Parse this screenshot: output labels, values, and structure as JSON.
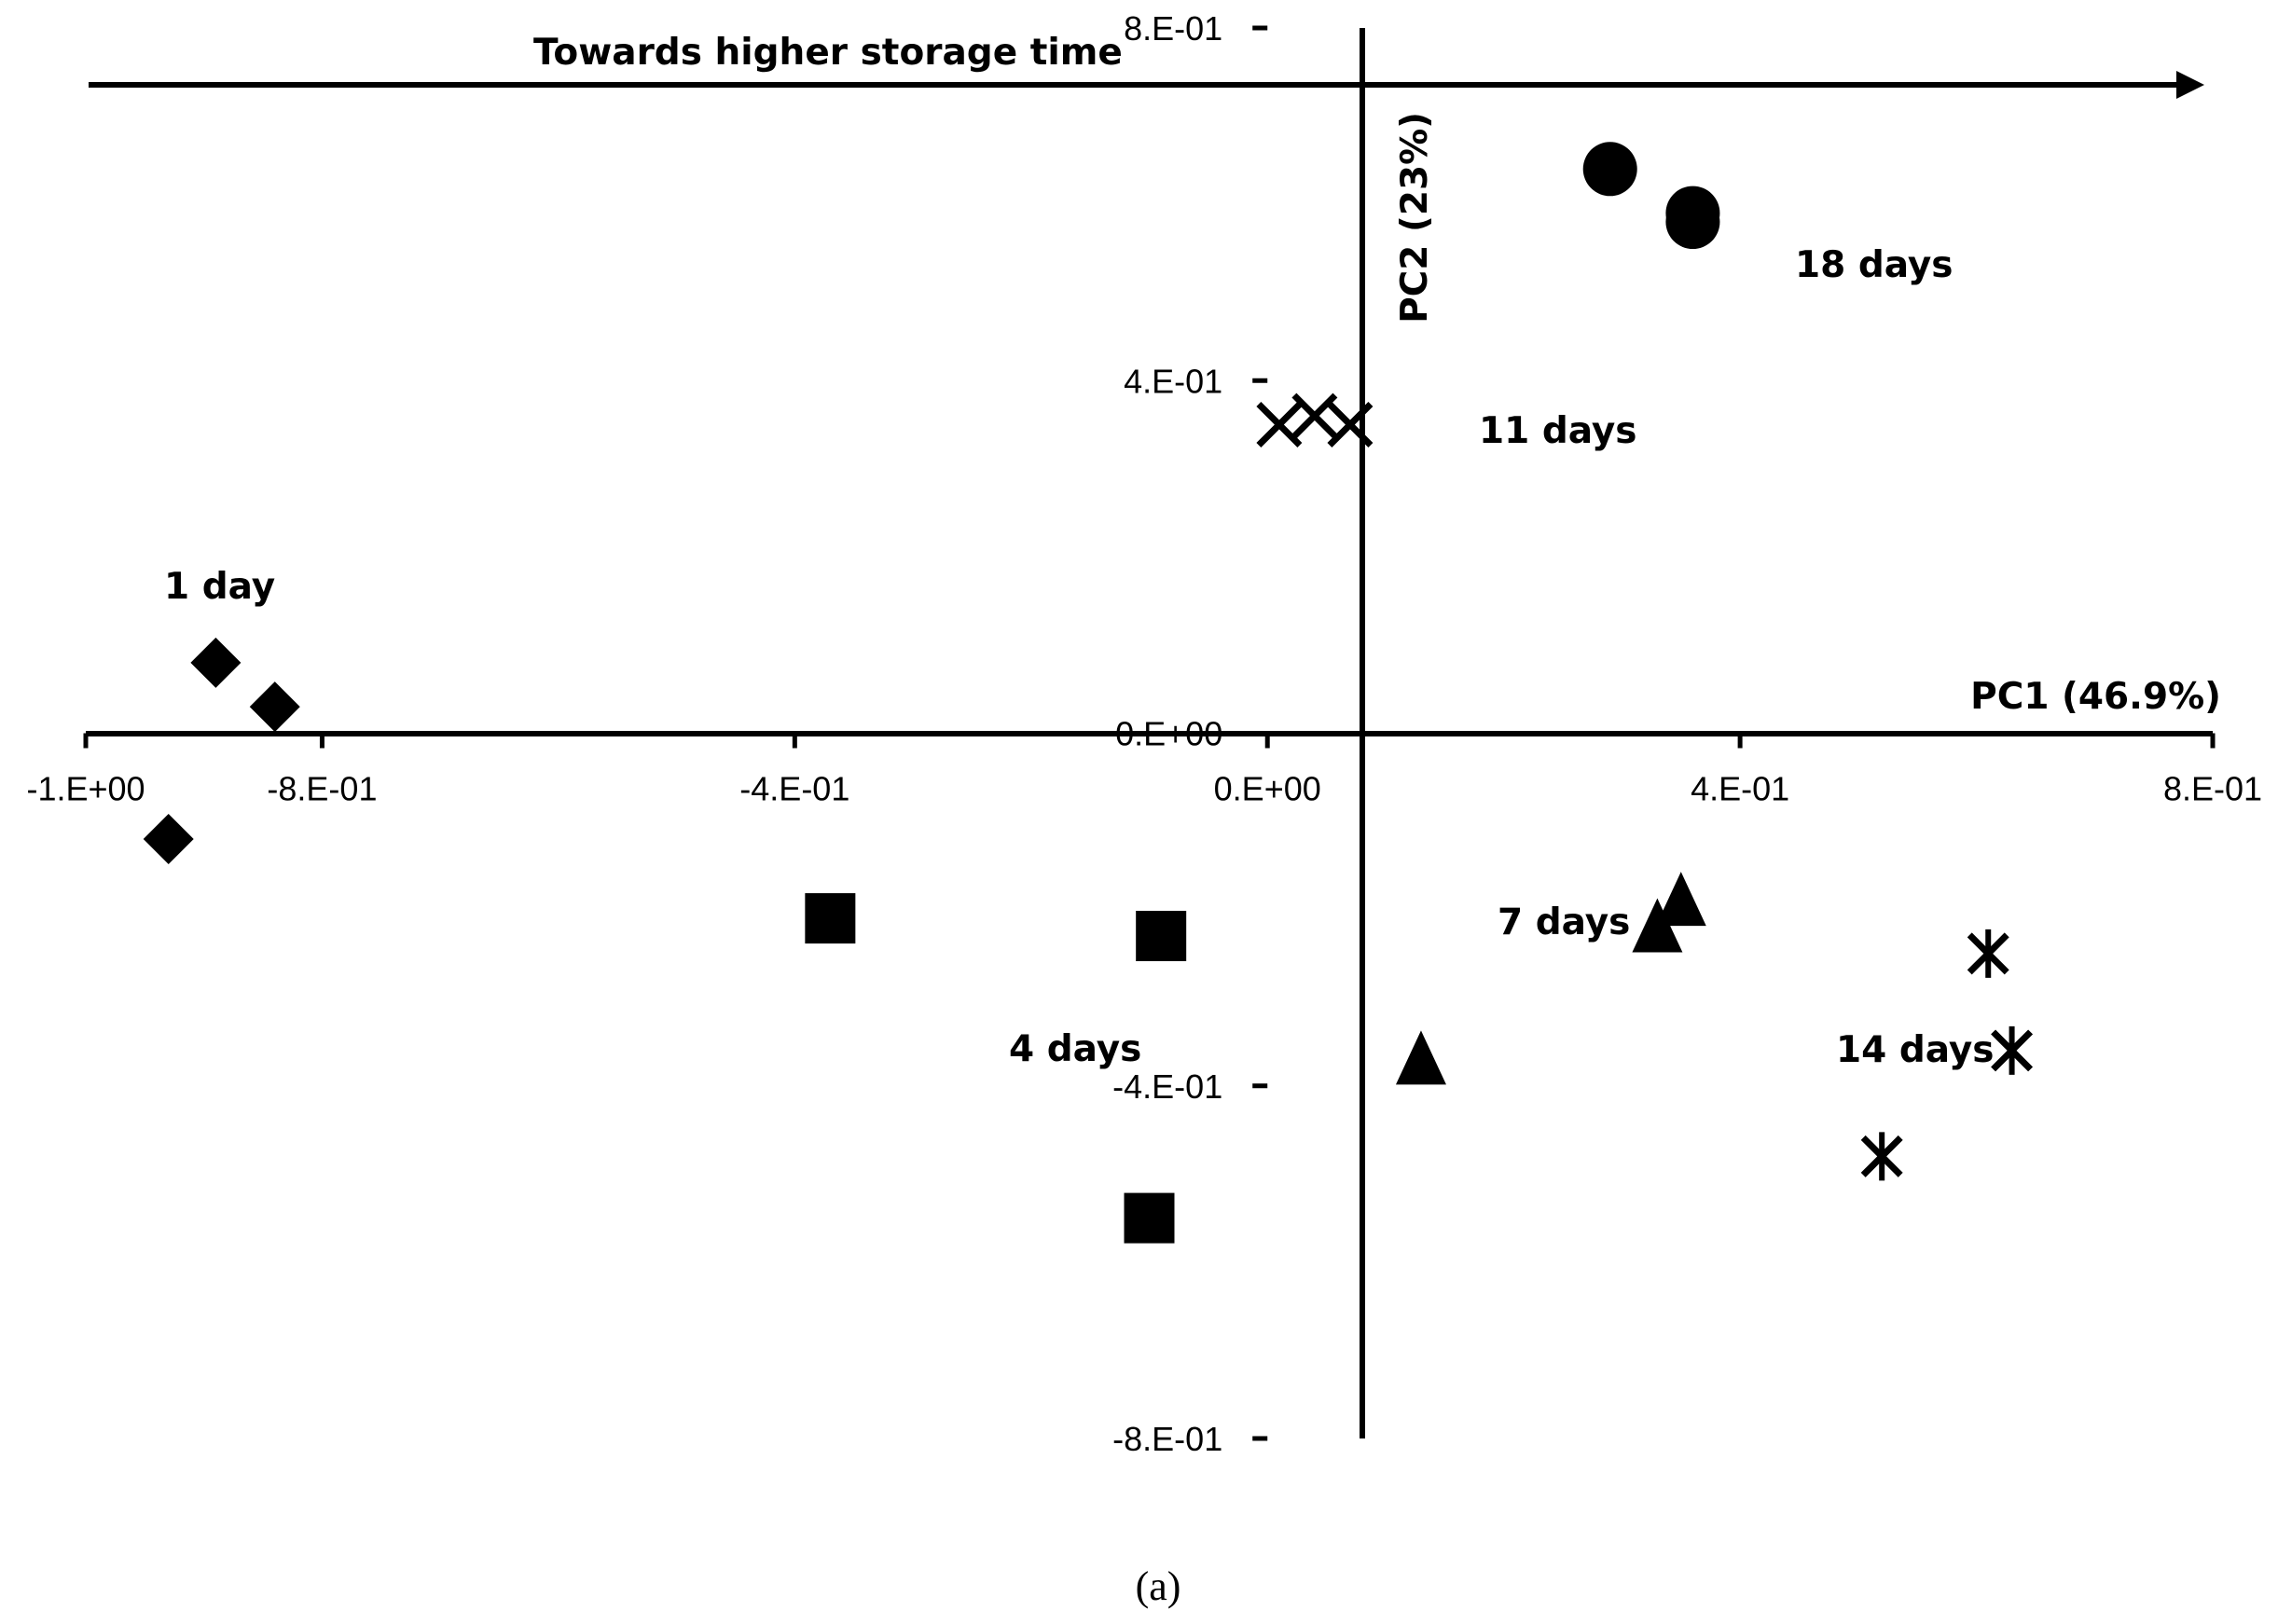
{
  "chart_data": {
    "type": "scatter",
    "x_axis": {
      "label": "PC1 (46.9%)",
      "range": [
        -1.0,
        0.8
      ],
      "ticks": [
        -1.0,
        -0.8,
        -0.4,
        0.0,
        0.4,
        0.8
      ],
      "tick_labels": [
        "-1.E+00",
        "-8.E-01",
        "-4.E-01",
        "0.E+00",
        "4.E-01",
        "8.E-01"
      ]
    },
    "y_axis": {
      "label": "PC2 (23%)",
      "range": [
        -0.8,
        0.8
      ],
      "ticks": [
        -0.8,
        -0.4,
        0.0,
        0.4,
        0.8
      ],
      "tick_labels": [
        "-8.E-01",
        "-4.E-01",
        "0.E+00",
        "4.E-01",
        "8.E-01"
      ]
    },
    "grid": false,
    "trend_arrow": {
      "label": "Towards higher storage time",
      "direction": "right"
    },
    "caption": "(a)",
    "series": [
      {
        "name": "1 day",
        "marker": "diamond",
        "points": [
          [
            -0.89,
            0.08
          ],
          [
            -0.84,
            0.03
          ],
          [
            -0.93,
            -0.12
          ]
        ]
      },
      {
        "name": "4 days",
        "marker": "square",
        "points": [
          [
            -0.37,
            -0.21
          ],
          [
            -0.09,
            -0.23
          ],
          [
            -0.1,
            -0.55
          ]
        ]
      },
      {
        "name": "7 days",
        "marker": "triangle",
        "points": [
          [
            0.35,
            -0.19
          ],
          [
            0.33,
            -0.22
          ],
          [
            0.13,
            -0.37
          ]
        ]
      },
      {
        "name": "11 days",
        "marker": "x",
        "points": [
          [
            0.01,
            0.35
          ],
          [
            0.04,
            0.36
          ],
          [
            0.07,
            0.35
          ]
        ]
      },
      {
        "name": "14 days",
        "marker": "asterisk",
        "points": [
          [
            0.61,
            -0.25
          ],
          [
            0.63,
            -0.36
          ],
          [
            0.52,
            -0.48
          ]
        ]
      },
      {
        "name": "18 days",
        "marker": "circle",
        "points": [
          [
            0.29,
            0.64
          ],
          [
            0.36,
            0.59
          ],
          [
            0.36,
            0.58
          ]
        ]
      }
    ]
  }
}
